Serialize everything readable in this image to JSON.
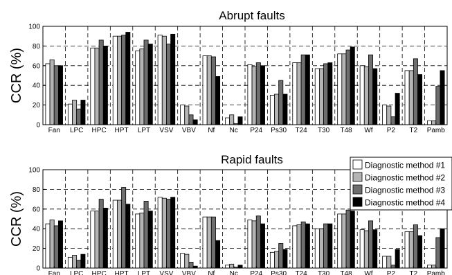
{
  "chart_data": [
    {
      "type": "bar",
      "title": "Abrupt faults",
      "ylabel": "CCR (%)",
      "xlabel": "",
      "ylim": [
        0,
        100
      ],
      "yticks": [
        0,
        20,
        40,
        60,
        80,
        100
      ],
      "grid": true,
      "categories": [
        "Fan",
        "LPC",
        "HPC",
        "HPT",
        "LPT",
        "VSV",
        "VBV",
        "Nf",
        "Nc",
        "P24",
        "Ps30",
        "T24",
        "T30",
        "T48",
        "Wf",
        "P2",
        "T2",
        "Pamb"
      ],
      "series": [
        {
          "name": "Diagnostic method #1",
          "color": "#ffffff",
          "values": [
            62,
            21,
            78,
            90,
            75,
            91,
            20,
            70,
            7,
            61,
            30,
            63,
            57,
            72,
            60,
            20,
            55,
            4
          ]
        },
        {
          "name": "Diagnostic method #2",
          "color": "#b4b4b4",
          "values": [
            66,
            25,
            78,
            90,
            77,
            90,
            19,
            70,
            10,
            59,
            31,
            63,
            57,
            72,
            59,
            19,
            55,
            4
          ]
        },
        {
          "name": "Diagnostic method #3",
          "color": "#6e6e6e",
          "values": [
            60,
            16,
            86,
            91,
            86,
            82,
            10,
            69,
            1,
            63,
            45,
            71,
            62,
            76,
            71,
            8,
            67,
            39
          ]
        },
        {
          "name": "Diagnostic method #4",
          "color": "#000000",
          "values": [
            60,
            25,
            80,
            94,
            82,
            92,
            5,
            49,
            8,
            60,
            31,
            71,
            63,
            79,
            57,
            32,
            51,
            55
          ]
        }
      ]
    },
    {
      "type": "bar",
      "title": "Rapid faults",
      "ylabel": "CCR (%)",
      "xlabel": "",
      "ylim": [
        0,
        100
      ],
      "yticks": [
        0,
        20,
        40,
        60,
        80,
        100
      ],
      "grid": true,
      "legend_position": "top-right",
      "categories": [
        "Fan",
        "LPC",
        "HPC",
        "HPT",
        "LPT",
        "VSV",
        "VBV",
        "Nf",
        "Nc",
        "P24",
        "Ps30",
        "T24",
        "T30",
        "T48",
        "Wf",
        "P2",
        "T2",
        "Pamb"
      ],
      "series": [
        {
          "name": "Diagnostic method #1",
          "color": "#ffffff",
          "values": [
            45,
            11,
            58,
            69,
            55,
            72,
            15,
            52,
            3,
            49,
            16,
            43,
            40,
            55,
            39,
            12,
            37,
            3
          ]
        },
        {
          "name": "Diagnostic method #2",
          "color": "#b4b4b4",
          "values": [
            49,
            13,
            58,
            69,
            56,
            71,
            14,
            52,
            4,
            48,
            17,
            44,
            40,
            55,
            38,
            12,
            37,
            3
          ]
        },
        {
          "name": "Diagnostic method #3",
          "color": "#6e6e6e",
          "values": [
            43,
            8,
            70,
            82,
            68,
            70,
            6,
            52,
            1,
            53,
            25,
            47,
            45,
            59,
            48,
            3,
            44,
            31
          ]
        },
        {
          "name": "Diagnostic method #4",
          "color": "#000000",
          "values": [
            48,
            14,
            61,
            65,
            58,
            72,
            2,
            28,
            3,
            45,
            19,
            45,
            45,
            58,
            39,
            19,
            33,
            40
          ]
        }
      ]
    }
  ],
  "legend": {
    "items": [
      {
        "label": "Diagnostic method #1",
        "color": "#ffffff"
      },
      {
        "label": "Diagnostic method #2",
        "color": "#b4b4b4"
      },
      {
        "label": "Diagnostic method #3",
        "color": "#6e6e6e"
      },
      {
        "label": "Diagnostic method #4",
        "color": "#000000"
      }
    ]
  }
}
